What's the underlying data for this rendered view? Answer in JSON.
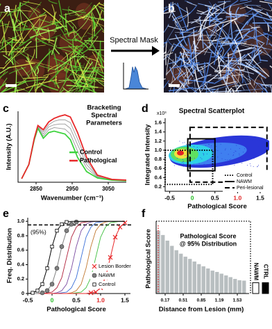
{
  "figure": {
    "panel_labels": [
      "a",
      "b",
      "c",
      "d",
      "e",
      "f"
    ],
    "mask_label": "Spectral Mask"
  },
  "chart_data": [
    {
      "type": "line",
      "title": [
        "Bracketing",
        "Spectral",
        "Parameters"
      ],
      "xlabel": "Wavenumber (cm⁻¹)",
      "ylabel": "Intensity (A.U.)",
      "x": [
        2810,
        2830,
        2845,
        2855,
        2870,
        2885,
        2900,
        2915,
        2930,
        2945,
        2965,
        2990,
        3020,
        3060,
        3100
      ],
      "xlim": [
        2800,
        3100
      ],
      "xticks": [
        2850,
        2950,
        3050
      ],
      "ylim": [
        0,
        1
      ],
      "series": [
        {
          "color": "#9a9a9a",
          "values": [
            0.05,
            0.25,
            0.6,
            0.77,
            0.65,
            0.74,
            0.77,
            0.76,
            0.75,
            0.68,
            0.44,
            0.2,
            0.07,
            0.03,
            0.02
          ]
        },
        {
          "color": "#9a9a9a",
          "values": [
            0.05,
            0.25,
            0.61,
            0.78,
            0.68,
            0.78,
            0.81,
            0.82,
            0.82,
            0.76,
            0.53,
            0.25,
            0.08,
            0.03,
            0.02
          ]
        },
        {
          "color": "#9a9a9a",
          "values": [
            0.05,
            0.25,
            0.61,
            0.79,
            0.71,
            0.81,
            0.86,
            0.88,
            0.88,
            0.84,
            0.61,
            0.3,
            0.09,
            0.04,
            0.03
          ]
        },
        {
          "name": "Control",
          "color": "#3ed33e",
          "values": [
            0.05,
            0.25,
            0.6,
            0.76,
            0.62,
            0.7,
            0.72,
            0.7,
            0.68,
            0.6,
            0.35,
            0.15,
            0.06,
            0.03,
            0.02
          ]
        },
        {
          "name": "Pathological",
          "color": "#e8282a",
          "values": [
            0.05,
            0.25,
            0.62,
            0.8,
            0.74,
            0.85,
            0.9,
            0.93,
            0.95,
            0.92,
            0.7,
            0.35,
            0.1,
            0.04,
            0.03
          ]
        }
      ]
    },
    {
      "type": "scatter",
      "title": "Spectral Scatterplot",
      "ylabel": "Integrated Intensity",
      "y_multiplier": "x10³",
      "xlabel": "Pathological Score",
      "xlim": [
        -0.6,
        1.7
      ],
      "xticks": [
        -0.5,
        0,
        0.5,
        {
          "value": 1,
          "label": "1.0"
        },
        1.5
      ],
      "xtick_colors": [
        "#000000",
        "#22bb22",
        "#000000",
        "#e02020",
        "#000000"
      ],
      "ylim": [
        0.1,
        1.7
      ],
      "yticks": [
        0.2,
        0.4,
        0.6,
        0.8,
        {
          "value": 1,
          "label": "1.0"
        },
        1.2,
        1.4,
        1.6
      ],
      "regions": [
        {
          "name": "Control",
          "style": "dotted",
          "x": [
            -0.6,
            0.45
          ],
          "y": [
            0.25,
            1.0
          ]
        },
        {
          "name": "NAWM",
          "style": "solid",
          "x": [
            -0.1,
            0.5
          ],
          "y": [
            0.55,
            1.25
          ]
        },
        {
          "name": "Peri-lesional",
          "style": "dashed",
          "x": [
            -0.05,
            1.65
          ],
          "y": [
            0.3,
            1.5
          ]
        }
      ]
    },
    {
      "type": "line",
      "ylabel": "Freq. Distribution",
      "xlabel": "Pathological Score",
      "annotation": "(95%)",
      "threshold": 0.95,
      "x": [
        -0.5,
        -0.4,
        -0.3,
        -0.2,
        -0.1,
        0,
        0.1,
        0.2,
        0.3,
        0.4,
        0.5,
        0.6,
        0.7,
        0.8,
        0.9,
        1,
        1.1,
        1.2,
        1.3,
        1.4,
        1.5
      ],
      "xlim": [
        -0.5,
        1.5
      ],
      "xticks": [
        -0.5,
        0,
        0.5,
        {
          "value": 1,
          "label": "1.0"
        },
        1.5
      ],
      "xtick_colors": [
        "#000000",
        "#22bb22",
        "#000000",
        "#e02020",
        "#000000"
      ],
      "ylim": [
        0,
        1.05
      ],
      "yticks": [
        0,
        0.2,
        0.4,
        0.6,
        0.8,
        {
          "value": 1,
          "label": "1.0"
        }
      ],
      "series": [
        {
          "name": "Lesion Border",
          "color": "#e8282a",
          "marker": "x",
          "values": [
            0,
            0,
            0,
            0,
            0,
            0,
            0,
            0,
            0,
            0,
            0,
            0,
            0,
            0.01,
            0.02,
            0.08,
            0.22,
            0.5,
            0.78,
            0.92,
            0.98
          ]
        },
        {
          "name": "NAWM",
          "color": "#808080",
          "marker": "circle",
          "values": [
            0,
            0,
            0,
            0.01,
            0.04,
            0.13,
            0.35,
            0.65,
            0.87,
            0.96,
            0.99,
            1,
            1,
            1,
            1,
            1,
            1,
            1,
            1,
            1,
            1
          ]
        },
        {
          "name": "Control",
          "color": "#000000",
          "marker": "square",
          "values": [
            0,
            0.01,
            0.04,
            0.13,
            0.35,
            0.65,
            0.87,
            0.96,
            0.99,
            1,
            1,
            1,
            1,
            1,
            1,
            1,
            1,
            1,
            1,
            1,
            1
          ]
        },
        {
          "color": "#b0203a",
          "values": [
            0,
            0,
            0,
            0,
            0.01,
            0.02,
            0.08,
            0.22,
            0.5,
            0.78,
            0.92,
            0.98,
            0.99,
            1,
            1,
            1,
            1,
            1,
            1,
            1,
            1
          ]
        },
        {
          "color": "#7a4aa0",
          "values": [
            0,
            0,
            0,
            0,
            0,
            0,
            0.01,
            0.04,
            0.13,
            0.35,
            0.65,
            0.87,
            0.96,
            0.99,
            1,
            1,
            1,
            1,
            1,
            1,
            1
          ]
        },
        {
          "color": "#3a6fd8",
          "values": [
            0,
            0,
            0,
            0,
            0,
            0,
            0,
            0.01,
            0.02,
            0.08,
            0.22,
            0.5,
            0.78,
            0.92,
            0.98,
            0.99,
            1,
            1,
            1,
            1,
            1
          ]
        },
        {
          "color": "#c07830",
          "values": [
            0,
            0,
            0,
            0,
            0,
            0,
            0,
            0,
            0,
            0.01,
            0.04,
            0.13,
            0.35,
            0.65,
            0.87,
            0.96,
            0.99,
            1,
            1,
            1,
            1
          ]
        },
        {
          "color": "#40c040",
          "values": [
            0,
            0,
            0,
            0,
            0,
            0,
            0,
            0,
            0,
            0,
            0.01,
            0.02,
            0.08,
            0.22,
            0.5,
            0.78,
            0.92,
            0.98,
            0.99,
            1,
            1
          ]
        }
      ]
    },
    {
      "type": "histogram",
      "title": [
        "Pathological Score",
        "@ 95% Distribution"
      ],
      "ylabel": "Pathological Score",
      "xlabel": "Distance from Lesion (mm)",
      "bins": [
        0,
        0.085,
        0.17,
        0.255,
        0.34,
        0.425,
        0.51,
        0.595,
        0.68,
        0.765,
        0.85,
        0.935,
        1.02,
        1.105,
        1.19,
        1.275,
        1.36,
        1.445,
        1.53,
        1.615,
        1.7
      ],
      "values": [
        1.45,
        1.35,
        1.22,
        1.1,
        1.0,
        0.92,
        0.85,
        0.8,
        0.74,
        0.68,
        0.63,
        0.58,
        0.53,
        0.5,
        0.46,
        0.42,
        0.38,
        0.34,
        0.31,
        0.3
      ],
      "color": "#b8bec0",
      "xlim": [
        0,
        1.7
      ],
      "xticks": [
        0.17,
        0.51,
        0.85,
        1.19,
        1.53
      ],
      "ylim": [
        0,
        1.6
      ],
      "references": [
        {
          "name": "NAWM",
          "value": 0.25,
          "color": "#ffffff"
        },
        {
          "name": "CTRL",
          "value": 0.25,
          "color": "#000000"
        }
      ]
    }
  ]
}
